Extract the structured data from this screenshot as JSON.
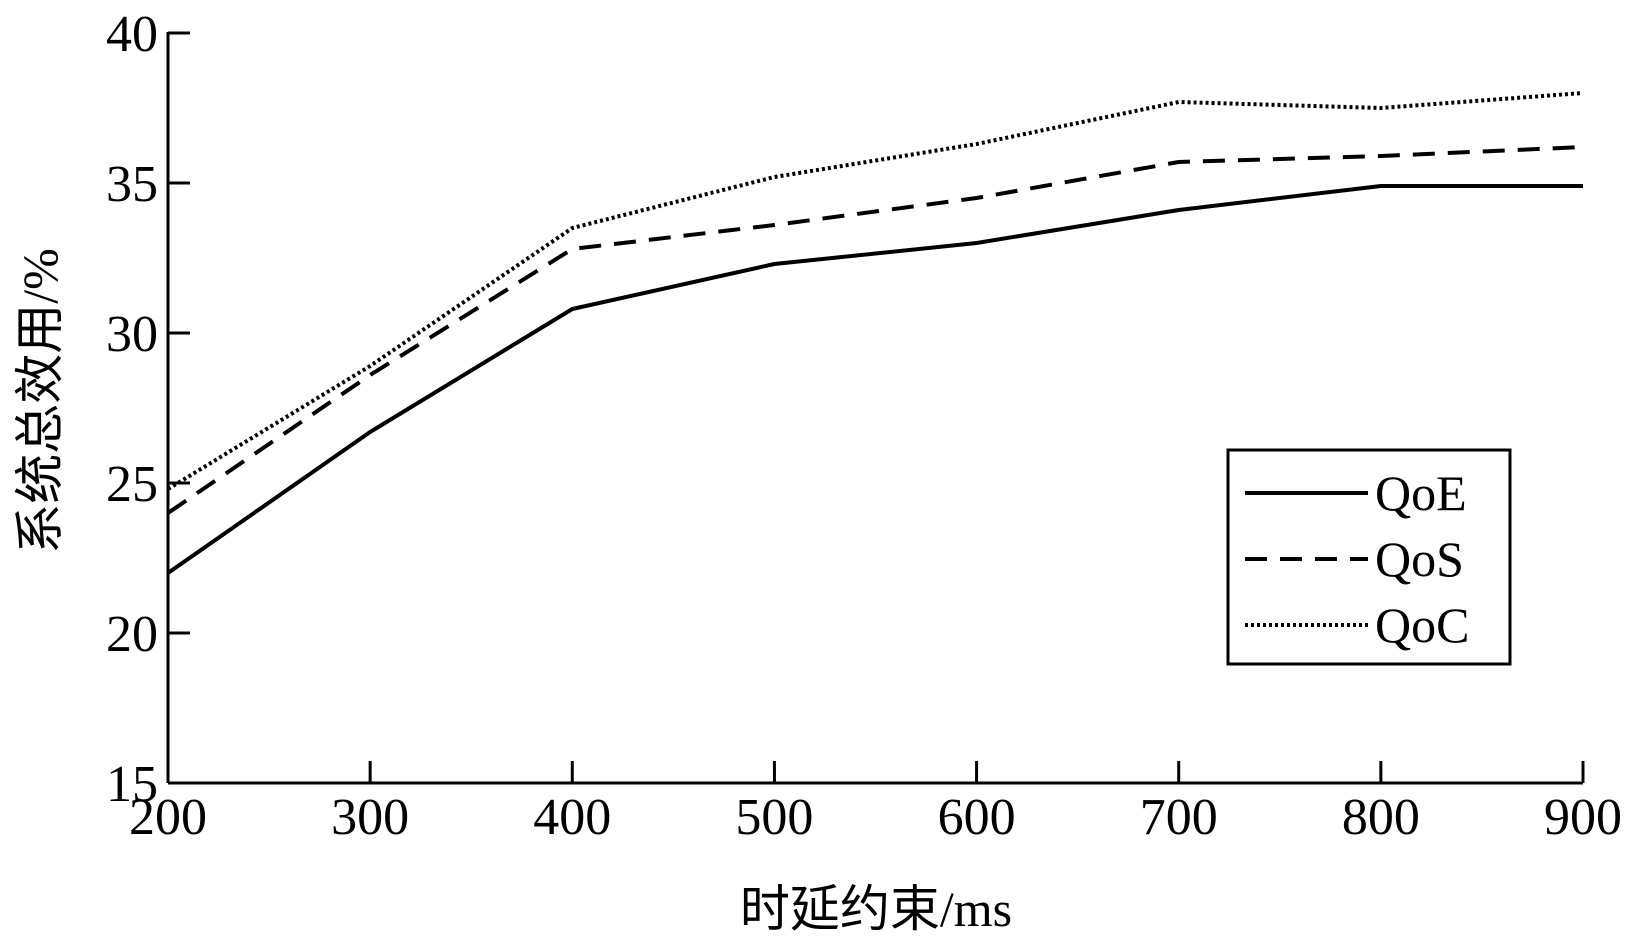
{
  "chart_data": {
    "type": "line",
    "title": "",
    "xlabel": "时延约束/ms",
    "ylabel": "系统总效用/%",
    "x": [
      200,
      300,
      400,
      500,
      600,
      700,
      800,
      900
    ],
    "xlim": [
      200,
      900
    ],
    "ylim": [
      15,
      40
    ],
    "xticks": [
      200,
      300,
      400,
      500,
      600,
      700,
      800,
      900
    ],
    "yticks": [
      15,
      20,
      25,
      30,
      35,
      40
    ],
    "grid": false,
    "legend_position": "right",
    "series": [
      {
        "name": "QoE",
        "style": "solid",
        "values": [
          22.0,
          26.7,
          30.8,
          32.3,
          33.0,
          34.1,
          34.9,
          34.9
        ]
      },
      {
        "name": "QoS",
        "style": "dashed",
        "values": [
          24.0,
          28.6,
          32.8,
          33.6,
          34.5,
          35.7,
          35.9,
          36.2
        ]
      },
      {
        "name": "QoC",
        "style": "dotted",
        "values": [
          24.8,
          28.9,
          33.5,
          35.2,
          36.3,
          37.7,
          37.5,
          38.0
        ]
      }
    ],
    "colors": {
      "line": "#000000",
      "background": "#ffffff"
    }
  }
}
